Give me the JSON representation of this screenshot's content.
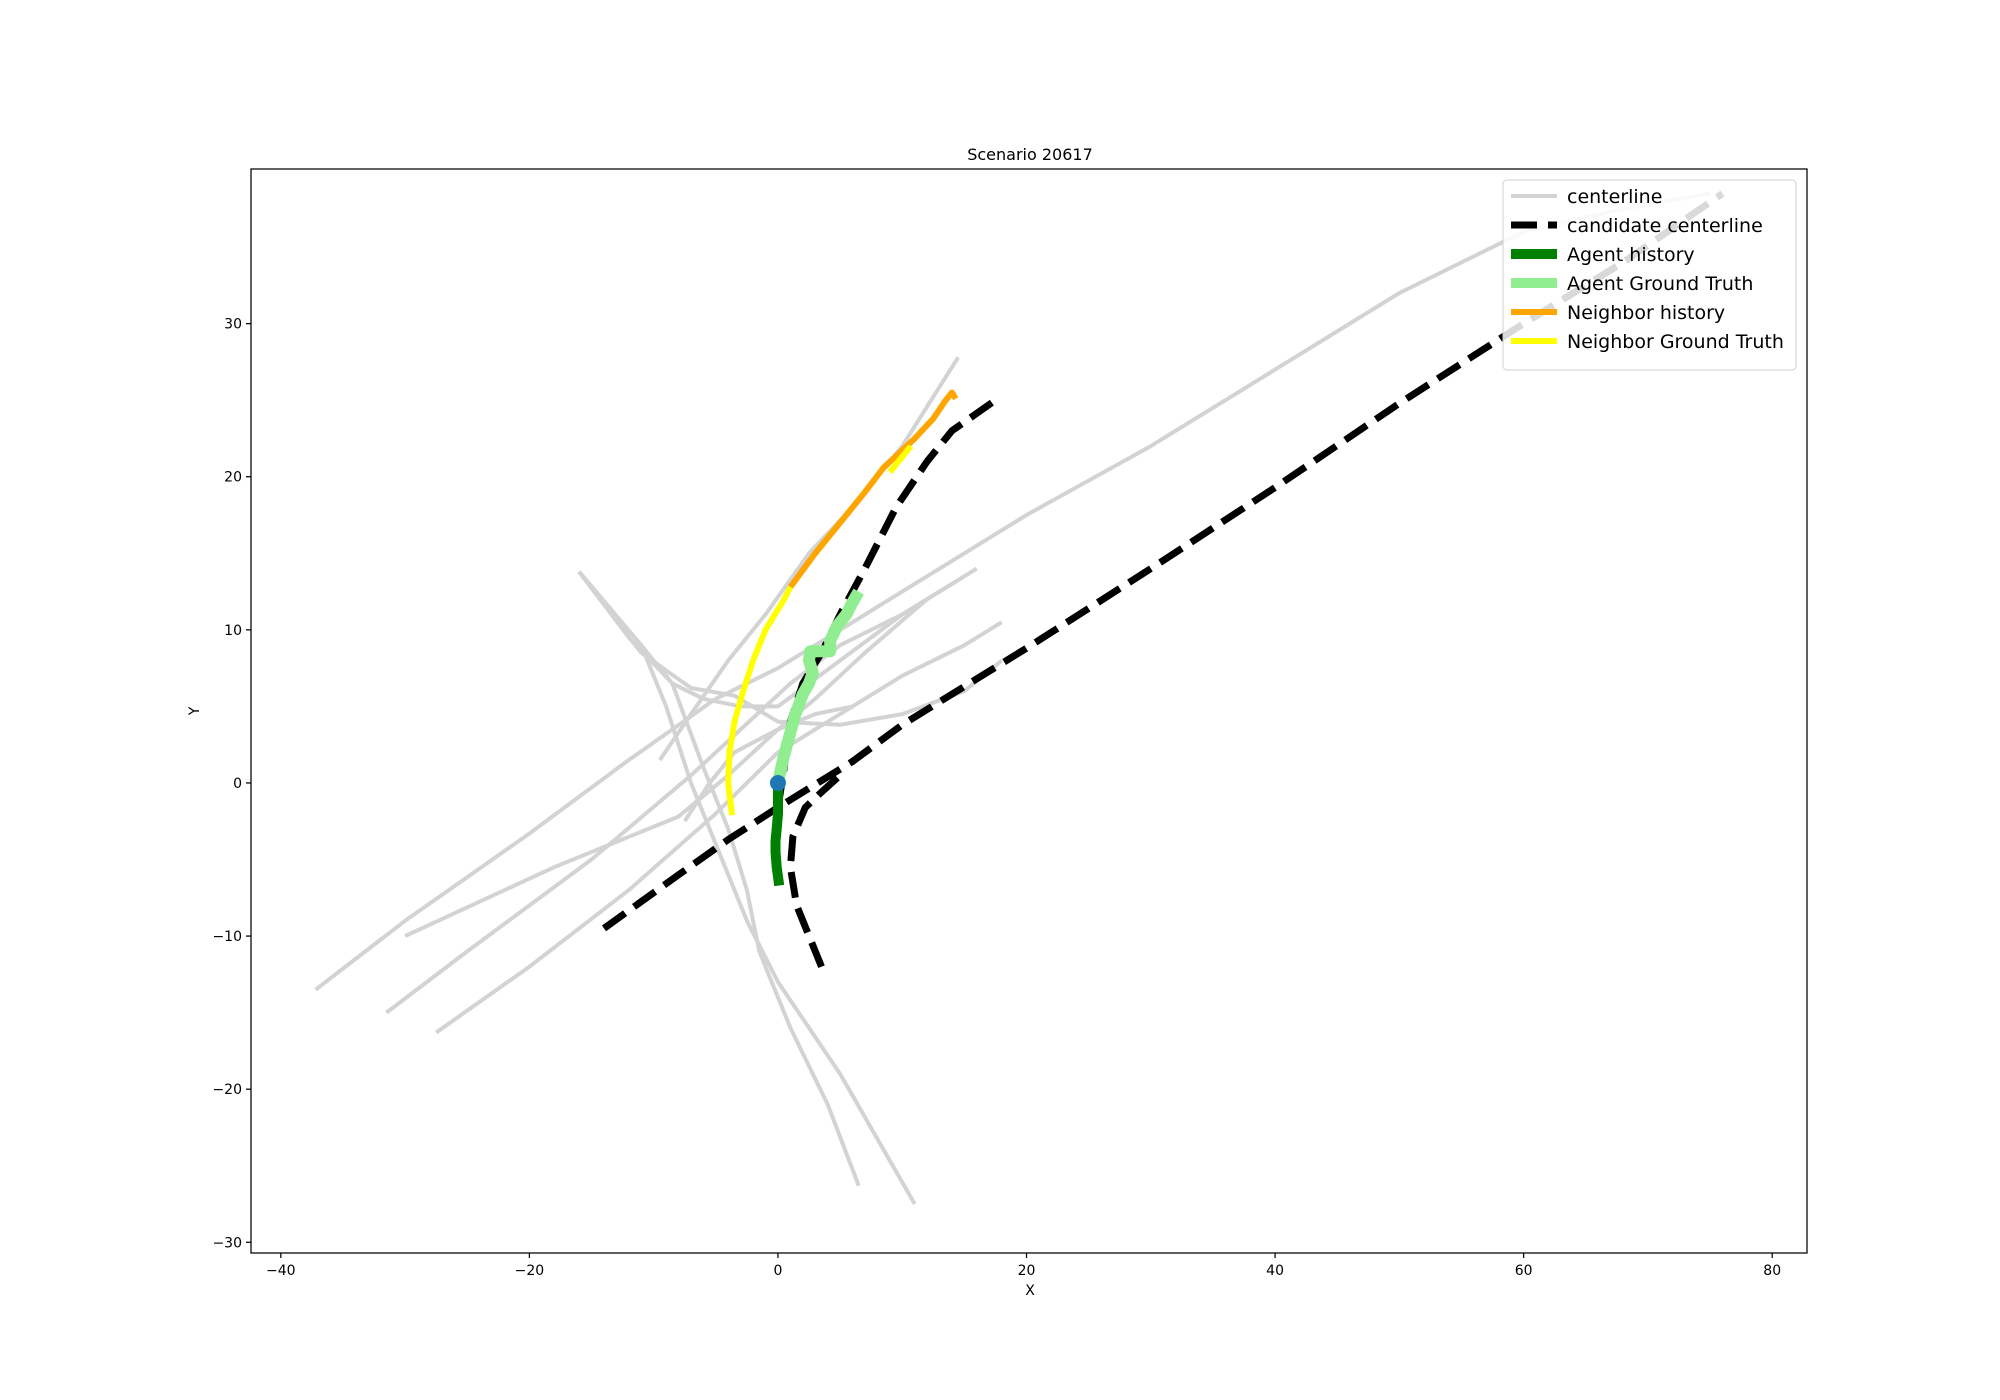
{
  "chart_data": {
    "type": "line",
    "title": "Scenario 20617",
    "xlabel": "X",
    "ylabel": "Y",
    "xlim": [
      -42.4,
      82.8
    ],
    "ylim": [
      -30.7,
      40.1
    ],
    "xticks": [
      -40,
      -20,
      0,
      20,
      40,
      60,
      80
    ],
    "yticks": [
      -30,
      -20,
      -10,
      0,
      10,
      20,
      30
    ],
    "tick_labels_x": [
      "−40",
      "−20",
      "0",
      "20",
      "40",
      "60",
      "80"
    ],
    "tick_labels_y": [
      "−30",
      "−20",
      "−10",
      "0",
      "10",
      "20",
      "30"
    ],
    "grid": false,
    "legend_position": "top-right",
    "legend": [
      {
        "label": "centerline",
        "color": "#d3d3d3",
        "style": "solid"
      },
      {
        "label": "candidate centerline",
        "color": "#000000",
        "style": "dashed"
      },
      {
        "label": "Agent history",
        "color": "#008000",
        "style": "solid"
      },
      {
        "label": "Agent Ground Truth",
        "color": "#90ee90",
        "style": "solid"
      },
      {
        "label": "Neighbor history",
        "color": "#ffa500",
        "style": "solid"
      },
      {
        "label": "Neighbor Ground Truth",
        "color": "#ffff00",
        "style": "solid"
      }
    ],
    "series": [
      {
        "name": "centerline",
        "color": "#d3d3d3",
        "dashed": false,
        "lines": [
          [
            [
              -37.2,
              -13.5
            ],
            [
              -30,
              -9
            ],
            [
              -20,
              -3.3
            ],
            [
              -12,
              1.5
            ],
            [
              -5,
              5.5
            ],
            [
              0,
              7.5
            ],
            [
              5,
              10
            ],
            [
              10,
              12.5
            ],
            [
              15,
              15
            ],
            [
              20,
              17.5
            ],
            [
              30,
              22
            ],
            [
              40,
              27
            ],
            [
              50,
              32
            ],
            [
              60,
              36
            ],
            [
              68,
              37.5
            ],
            [
              75,
              38.5
            ]
          ],
          [
            [
              -31.5,
              -15
            ],
            [
              -25,
              -11
            ],
            [
              -15,
              -5
            ],
            [
              -7,
              0.5
            ],
            [
              -3,
              3.5
            ],
            [
              1,
              6.5
            ],
            [
              5,
              9
            ],
            [
              10,
              11
            ],
            [
              16,
              14
            ]
          ],
          [
            [
              -27.5,
              -16.3
            ],
            [
              -20,
              -12
            ],
            [
              -12,
              -7
            ],
            [
              -5,
              -2
            ],
            [
              0,
              2
            ],
            [
              5,
              4.5
            ],
            [
              10,
              7
            ],
            [
              15,
              9
            ],
            [
              18,
              10.5
            ]
          ],
          [
            [
              -16,
              13.8
            ],
            [
              -11,
              8.5
            ],
            [
              -7,
              6.2
            ],
            [
              -3.5,
              5.7
            ],
            [
              0,
              4
            ],
            [
              5,
              3.8
            ],
            [
              10,
              4.5
            ],
            [
              15,
              6
            ],
            [
              18,
              8
            ]
          ],
          [
            [
              -16,
              13.8
            ],
            [
              -12,
              9.5
            ],
            [
              -8.5,
              6.5
            ],
            [
              -6,
              1
            ],
            [
              -4,
              -3
            ],
            [
              -2.5,
              -7
            ],
            [
              -1.5,
              -11
            ],
            [
              1,
              -16
            ],
            [
              4,
              -21
            ],
            [
              6.5,
              -26.3
            ]
          ],
          [
            [
              -16,
              13.8
            ],
            [
              -11,
              9
            ],
            [
              -8.5,
              6.5
            ],
            [
              -6,
              5.5
            ],
            [
              -3,
              5
            ],
            [
              0,
              5
            ],
            [
              5,
              8
            ],
            [
              10,
              11
            ],
            [
              15,
              13.5
            ]
          ],
          [
            [
              -16,
              13.8
            ],
            [
              -11,
              9
            ],
            [
              -9,
              5
            ],
            [
              -7,
              0
            ],
            [
              -5,
              -4
            ],
            [
              -3.5,
              -7
            ],
            [
              -2.5,
              -9
            ],
            [
              0,
              -13
            ],
            [
              5,
              -19
            ],
            [
              11,
              -27.5
            ]
          ],
          [
            [
              -9.5,
              1.5
            ],
            [
              -7,
              4.5
            ],
            [
              -4,
              8
            ],
            [
              -1,
              11
            ],
            [
              2.5,
              15
            ],
            [
              6,
              18
            ],
            [
              10,
              22
            ],
            [
              14.5,
              27.8
            ]
          ],
          [
            [
              -30,
              -10
            ],
            [
              -18,
              -5.5
            ],
            [
              -8,
              -2.2
            ],
            [
              -4,
              0.5
            ],
            [
              0,
              3.5
            ],
            [
              3,
              5.5
            ],
            [
              7,
              8.5
            ],
            [
              12,
              12
            ]
          ],
          [
            [
              -7.5,
              -2.5
            ],
            [
              -5.5,
              0
            ],
            [
              -3.5,
              2
            ],
            [
              0,
              3.5
            ],
            [
              3,
              4.5
            ],
            [
              6,
              5
            ]
          ]
        ]
      },
      {
        "name": "candidate centerline",
        "color": "#000000",
        "dashed": true,
        "lines": [
          [
            [
              -14,
              -9.5
            ],
            [
              -8,
              -6
            ],
            [
              -4,
              -3.7
            ],
            [
              0,
              -1.6
            ],
            [
              3,
              -0.1
            ],
            [
              6,
              1.4
            ],
            [
              10,
              3.8
            ],
            [
              20,
              8.8
            ],
            [
              30,
              14
            ],
            [
              40,
              19.3
            ],
            [
              50,
              24.8
            ],
            [
              60,
              30
            ],
            [
              68,
              34
            ],
            [
              76,
              38.5
            ]
          ],
          [
            [
              3.5,
              -12
            ],
            [
              1.5,
              -8
            ],
            [
              1,
              -5.5
            ],
            [
              1.2,
              -3.5
            ],
            [
              2.2,
              -1.6
            ],
            [
              3.5,
              -0.6
            ],
            [
              5,
              0.5
            ]
          ],
          [
            [
              0,
              -1.6
            ],
            [
              0.5,
              1
            ],
            [
              1,
              4
            ],
            [
              2,
              6.5
            ],
            [
              3.5,
              8.5
            ],
            [
              5,
              11
            ],
            [
              7,
              14
            ],
            [
              9.5,
              18
            ],
            [
              12,
              21
            ],
            [
              14,
              23
            ],
            [
              17.5,
              25
            ]
          ]
        ]
      },
      {
        "name": "Agent history",
        "color": "#008000",
        "dashed": false,
        "lines": [
          [
            [
              0.1,
              -6.7
            ],
            [
              -0.1,
              -5.5
            ],
            [
              -0.2,
              -4.5
            ],
            [
              -0.2,
              -3.8
            ],
            [
              -0.1,
              -3
            ],
            [
              0,
              -2
            ],
            [
              0,
              -1
            ],
            [
              0,
              0
            ]
          ]
        ]
      },
      {
        "name": "Agent Ground Truth",
        "color": "#90ee90",
        "dashed": false,
        "lines": [
          [
            [
              0,
              0
            ],
            [
              0.4,
              1.5
            ],
            [
              0.9,
              3
            ],
            [
              1.4,
              4.5
            ],
            [
              2,
              5.8
            ],
            [
              2.5,
              6.5
            ],
            [
              2.8,
              7.2
            ],
            [
              2.5,
              8
            ],
            [
              2.6,
              8.6
            ],
            [
              3.5,
              8.6
            ],
            [
              4.2,
              8.6
            ],
            [
              4.2,
              9.3
            ],
            [
              4.8,
              10.3
            ],
            [
              5.5,
              11
            ],
            [
              6,
              11.8
            ],
            [
              6.5,
              12.5
            ]
          ]
        ]
      },
      {
        "name": "Neighbor history",
        "color": "#ffa500",
        "dashed": false,
        "lines": [
          [
            [
              1,
              12.8
            ],
            [
              3,
              15
            ],
            [
              5,
              17
            ],
            [
              7,
              19
            ],
            [
              8.5,
              20.6
            ],
            [
              11,
              22.5
            ],
            [
              12.5,
              23.8
            ],
            [
              13.5,
              25
            ],
            [
              14,
              25.5
            ],
            [
              14.3,
              25.1
            ]
          ]
        ]
      },
      {
        "name": "Neighbor Ground Truth",
        "color": "#ffff00",
        "dashed": false,
        "lines": [
          [
            [
              -3.7,
              -2.1
            ],
            [
              -4,
              0
            ],
            [
              -3.9,
              2
            ],
            [
              -3.5,
              4
            ],
            [
              -2.8,
              6
            ],
            [
              -2,
              8
            ],
            [
              -1,
              10
            ],
            [
              0.5,
              12
            ],
            [
              1,
              12.8
            ]
          ],
          [
            [
              9,
              20.3
            ],
            [
              10,
              21.3
            ],
            [
              10.7,
              22
            ]
          ]
        ]
      }
    ],
    "agent_marker": {
      "x": 0,
      "y": 0,
      "color": "#1f77b4"
    }
  }
}
